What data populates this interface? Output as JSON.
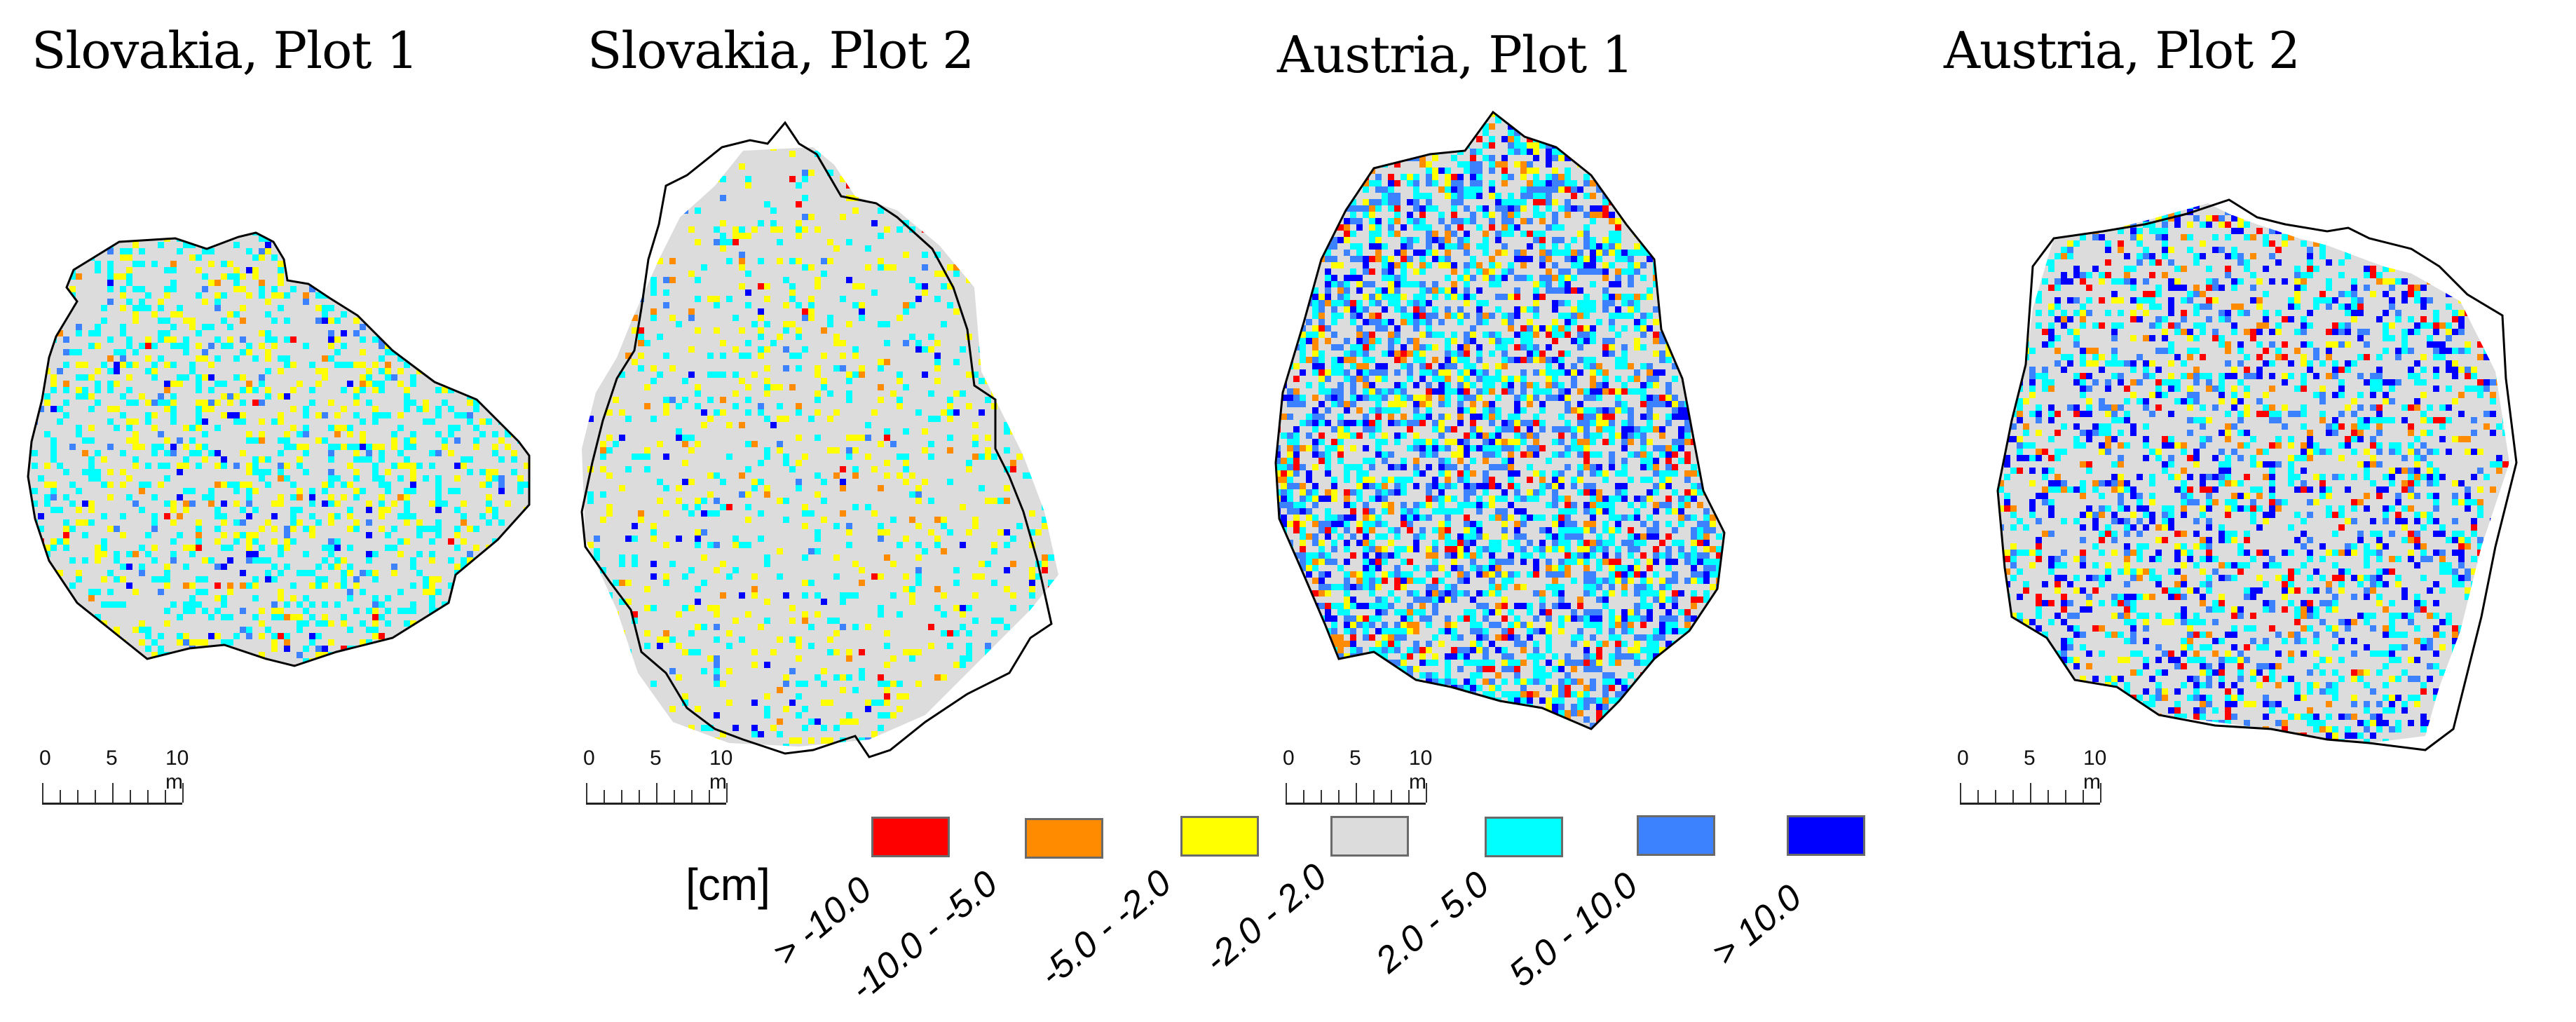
{
  "figure": {
    "plots": [
      {
        "title": "Slovakia, Plot 1",
        "id": "slovakia-plot-1",
        "mix": {
          "red": 0.003,
          "orange": 0.006,
          "yellow": 0.09,
          "gray": 0.7,
          "cyan": 0.17,
          "lightblue": 0.02,
          "blue": 0.011
        }
      },
      {
        "title": "Slovakia, Plot 2",
        "id": "slovakia-plot-2",
        "mix": {
          "red": 0.005,
          "orange": 0.01,
          "yellow": 0.07,
          "gray": 0.83,
          "cyan": 0.07,
          "lightblue": 0.008,
          "blue": 0.007
        }
      },
      {
        "title": "Austria, Plot 1",
        "id": "austria-plot-1",
        "mix": {
          "red": 0.04,
          "orange": 0.05,
          "yellow": 0.06,
          "gray": 0.42,
          "cyan": 0.2,
          "lightblue": 0.15,
          "blue": 0.08
        }
      },
      {
        "title": "Austria, Plot 2",
        "id": "austria-plot-2",
        "mix": {
          "red": 0.03,
          "orange": 0.03,
          "yellow": 0.04,
          "gray": 0.62,
          "cyan": 0.14,
          "lightblue": 0.06,
          "blue": 0.08
        }
      }
    ],
    "scalebar": {
      "labels": [
        "0",
        "5",
        "10 m"
      ],
      "ticks": 8
    }
  },
  "legend": {
    "unit": "[cm]",
    "classes": [
      {
        "label": "> -10.0",
        "color": "#ff0000"
      },
      {
        "label": "-10.0 - -5.0",
        "color": "#ff8c00"
      },
      {
        "label": "-5.0 - -2.0",
        "color": "#ffff00"
      },
      {
        "label": "-2.0 - 2.0",
        "color": "#dcdcdc"
      },
      {
        "label": "2.0 - 5.0",
        "color": "#00ffff"
      },
      {
        "label": "5.0 - 10.0",
        "color": "#3c82ff"
      },
      {
        "label": "> 10.0",
        "color": "#0000ff"
      }
    ]
  },
  "chart_data": {
    "type": "heatmap",
    "title": "",
    "panels": [
      "Slovakia, Plot 1",
      "Slovakia, Plot 2",
      "Austria, Plot 1",
      "Austria, Plot 2"
    ],
    "legend_title": "[cm]",
    "classes": [
      "> -10.0",
      "-10.0 - -5.0",
      "-5.0 - -2.0",
      "-2.0 - 2.0",
      "2.0 - 5.0",
      "5.0 - 10.0",
      "> 10.0"
    ],
    "class_colors": [
      "#ff0000",
      "#ff8c00",
      "#ffff00",
      "#dcdcdc",
      "#00ffff",
      "#3c82ff",
      "#0000ff"
    ],
    "scale_bar": {
      "ticks": [
        "0",
        "5",
        "10 m"
      ],
      "length_m": 10
    }
  }
}
